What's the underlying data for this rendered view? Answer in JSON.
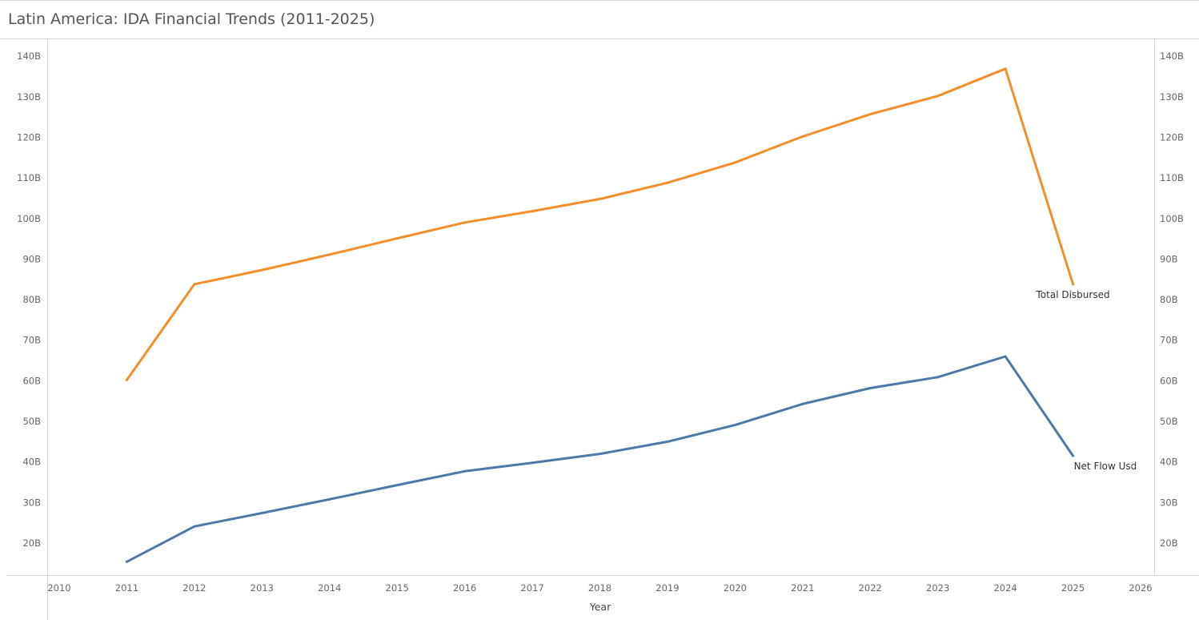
{
  "chart_data": {
    "type": "line",
    "title": "Latin America: IDA Financial Trends (2011-2025)",
    "xlabel": "Year",
    "ylabel_left": "",
    "ylabel_right": "",
    "x": [
      2011,
      2012,
      2013,
      2014,
      2015,
      2016,
      2017,
      2018,
      2019,
      2020,
      2021,
      2022,
      2023,
      2024,
      2025
    ],
    "xlim": [
      2010,
      2026
    ],
    "xticks": [
      2010,
      2011,
      2012,
      2013,
      2014,
      2015,
      2016,
      2017,
      2018,
      2019,
      2020,
      2021,
      2022,
      2023,
      2024,
      2025,
      2026
    ],
    "ylim": [
      12.5,
      142
    ],
    "yticks": [
      20,
      30,
      40,
      50,
      60,
      70,
      80,
      90,
      100,
      110,
      120,
      130,
      140
    ],
    "ytick_labels": [
      "20B",
      "30B",
      "40B",
      "50B",
      "60B",
      "70B",
      "80B",
      "90B",
      "100B",
      "110B",
      "120B",
      "130B",
      "140B"
    ],
    "series": [
      {
        "name": "Total Disbursed",
        "color": "#f28e2b",
        "values": [
          60.2,
          83.8,
          87.3,
          91.1,
          95.1,
          99.0,
          101.8,
          104.8,
          108.8,
          113.8,
          120.2,
          125.7,
          130.2,
          136.9,
          83.8
        ]
      },
      {
        "name": "Net Flow Usd",
        "color": "#4e79a7",
        "values": [
          15.4,
          24.1,
          27.4,
          30.8,
          34.3,
          37.7,
          39.8,
          42.0,
          45.0,
          49.1,
          54.3,
          58.2,
          60.9,
          66.0,
          41.5
        ]
      }
    ],
    "grid": false,
    "legend": "inline-end-labels"
  }
}
